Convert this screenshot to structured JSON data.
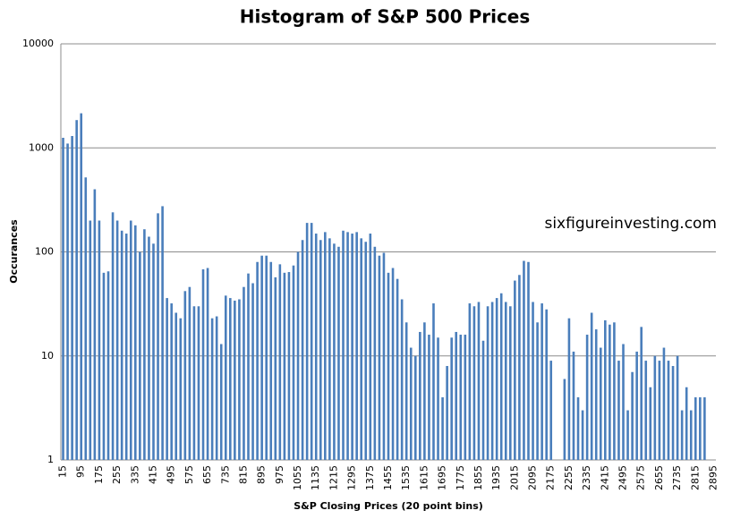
{
  "chart_data": {
    "type": "bar",
    "title": "Histogram of S&P 500 Prices",
    "x_label": "S&P Closing Prices (20 point bins)",
    "y_label": "Occurances",
    "annotation": "sixfigureinvesting.com",
    "color": "#4a7ebb",
    "log_y": true,
    "grid": true,
    "ylim": [
      1,
      10000
    ],
    "yticks": [
      1,
      10,
      100,
      1000,
      10000
    ],
    "categories": [
      "15",
      null,
      null,
      null,
      "95",
      null,
      null,
      null,
      "175",
      null,
      null,
      null,
      "255",
      null,
      null,
      null,
      "335",
      null,
      null,
      null,
      "415",
      null,
      null,
      null,
      "495",
      null,
      null,
      null,
      "575",
      null,
      null,
      null,
      "655",
      null,
      null,
      null,
      "735",
      null,
      null,
      null,
      "815",
      null,
      null,
      null,
      "895",
      null,
      null,
      null,
      "975",
      null,
      null,
      null,
      "1055",
      null,
      null,
      null,
      "1135",
      null,
      null,
      null,
      "1215",
      null,
      null,
      null,
      "1295",
      null,
      null,
      null,
      "1375",
      null,
      null,
      null,
      "1455",
      null,
      null,
      null,
      "1535",
      null,
      null,
      null,
      "1615",
      null,
      null,
      null,
      "1695",
      null,
      null,
      null,
      "1775",
      null,
      null,
      null,
      "1855",
      null,
      null,
      null,
      "1935",
      null,
      null,
      null,
      "2015",
      null,
      null,
      null,
      "2095",
      null,
      null,
      null,
      "2175",
      null,
      null,
      null,
      "2255",
      null,
      null,
      null,
      "2335",
      null,
      null,
      null,
      "2415",
      null,
      null,
      null,
      "2495",
      null,
      null,
      null,
      "2575",
      null,
      null,
      null,
      "2655",
      null,
      null,
      null,
      "2735",
      null,
      null,
      null,
      "2815",
      null,
      null,
      null,
      "2895"
    ],
    "values": [
      1250,
      1100,
      1300,
      1850,
      2150,
      520,
      200,
      400,
      200,
      63,
      65,
      240,
      200,
      160,
      150,
      200,
      180,
      100,
      165,
      140,
      120,
      235,
      275,
      36,
      32,
      26,
      23,
      42,
      46,
      30,
      30,
      68,
      70,
      23,
      24,
      13,
      38,
      36,
      34,
      35,
      46,
      62,
      50,
      80,
      92,
      92,
      80,
      57,
      76,
      63,
      64,
      74,
      100,
      130,
      190,
      190,
      150,
      130,
      155,
      135,
      120,
      112,
      160,
      155,
      150,
      155,
      135,
      125,
      150,
      112,
      92,
      98,
      63,
      70,
      55,
      35,
      21,
      12,
      10,
      17,
      21,
      16,
      32,
      15,
      4,
      8,
      15,
      17,
      16,
      16,
      32,
      30,
      33,
      14,
      30,
      33,
      36,
      40,
      33,
      30,
      53,
      60,
      82,
      80,
      33,
      21,
      32,
      28,
      9,
      null,
      null,
      6,
      23,
      11,
      4,
      3,
      16,
      26,
      18,
      12,
      22,
      20,
      21,
      9,
      13,
      3,
      7,
      11,
      19,
      9,
      5,
      10,
      9,
      12,
      9,
      8,
      10,
      3,
      5,
      3,
      4,
      4,
      4,
      null,
      null
    ]
  }
}
